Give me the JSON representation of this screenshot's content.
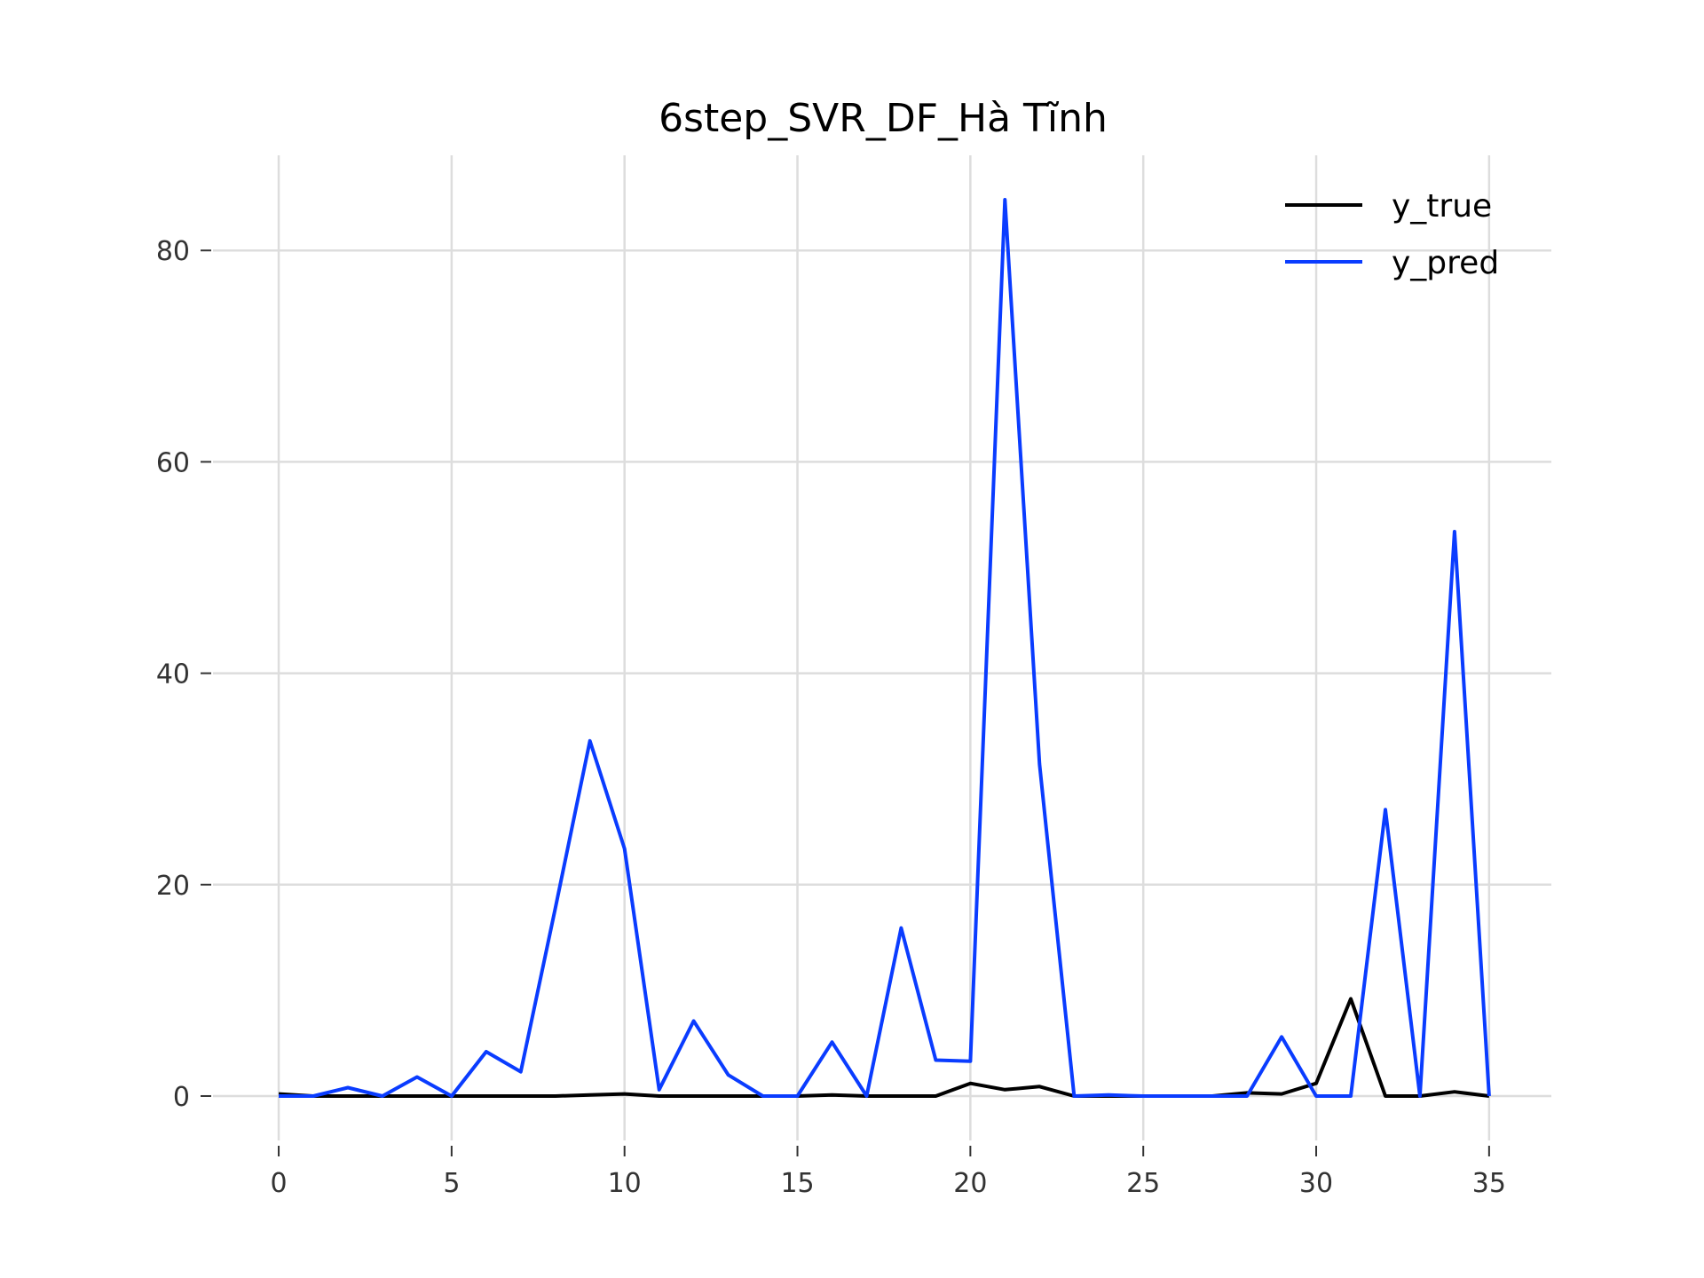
{
  "chart_data": {
    "type": "line",
    "title": "6step_SVR_DF_Hà Tĩnh",
    "xlabel": "",
    "ylabel": "",
    "x": [
      0,
      1,
      2,
      3,
      4,
      5,
      6,
      7,
      8,
      9,
      10,
      11,
      12,
      13,
      14,
      15,
      16,
      17,
      18,
      19,
      20,
      21,
      22,
      23,
      24,
      25,
      26,
      27,
      28,
      29,
      30,
      31,
      32,
      33,
      34,
      35
    ],
    "xlim": [
      -1.9,
      36.8
    ],
    "ylim": [
      -4.2,
      89
    ],
    "xticks": [
      0,
      5,
      10,
      15,
      20,
      25,
      30,
      35
    ],
    "yticks": [
      0,
      20,
      40,
      60,
      80
    ],
    "grid": true,
    "legend_position": "top-right",
    "series": [
      {
        "name": "y_true",
        "color": "#000000",
        "values": [
          0.2,
          0,
          0,
          0,
          0,
          0,
          0,
          0,
          0,
          0.1,
          0.2,
          0,
          0,
          0,
          0,
          0,
          0.1,
          0,
          0,
          0,
          1.2,
          0.6,
          0.9,
          0,
          0,
          0,
          0,
          0,
          0.3,
          0.2,
          1.2,
          9.2,
          0,
          0,
          0.4,
          0
        ]
      },
      {
        "name": "y_pred",
        "color": "#0a3cff",
        "values": [
          0,
          0,
          0.8,
          0,
          1.8,
          0,
          4.2,
          2.3,
          17.8,
          33.6,
          23.4,
          0.6,
          7.1,
          2,
          0,
          0,
          5.1,
          0,
          15.9,
          3.4,
          3.3,
          84.8,
          31.4,
          0,
          0.1,
          0,
          0,
          0,
          0,
          5.6,
          0,
          0,
          27.1,
          0,
          53.4,
          0
        ]
      }
    ]
  }
}
